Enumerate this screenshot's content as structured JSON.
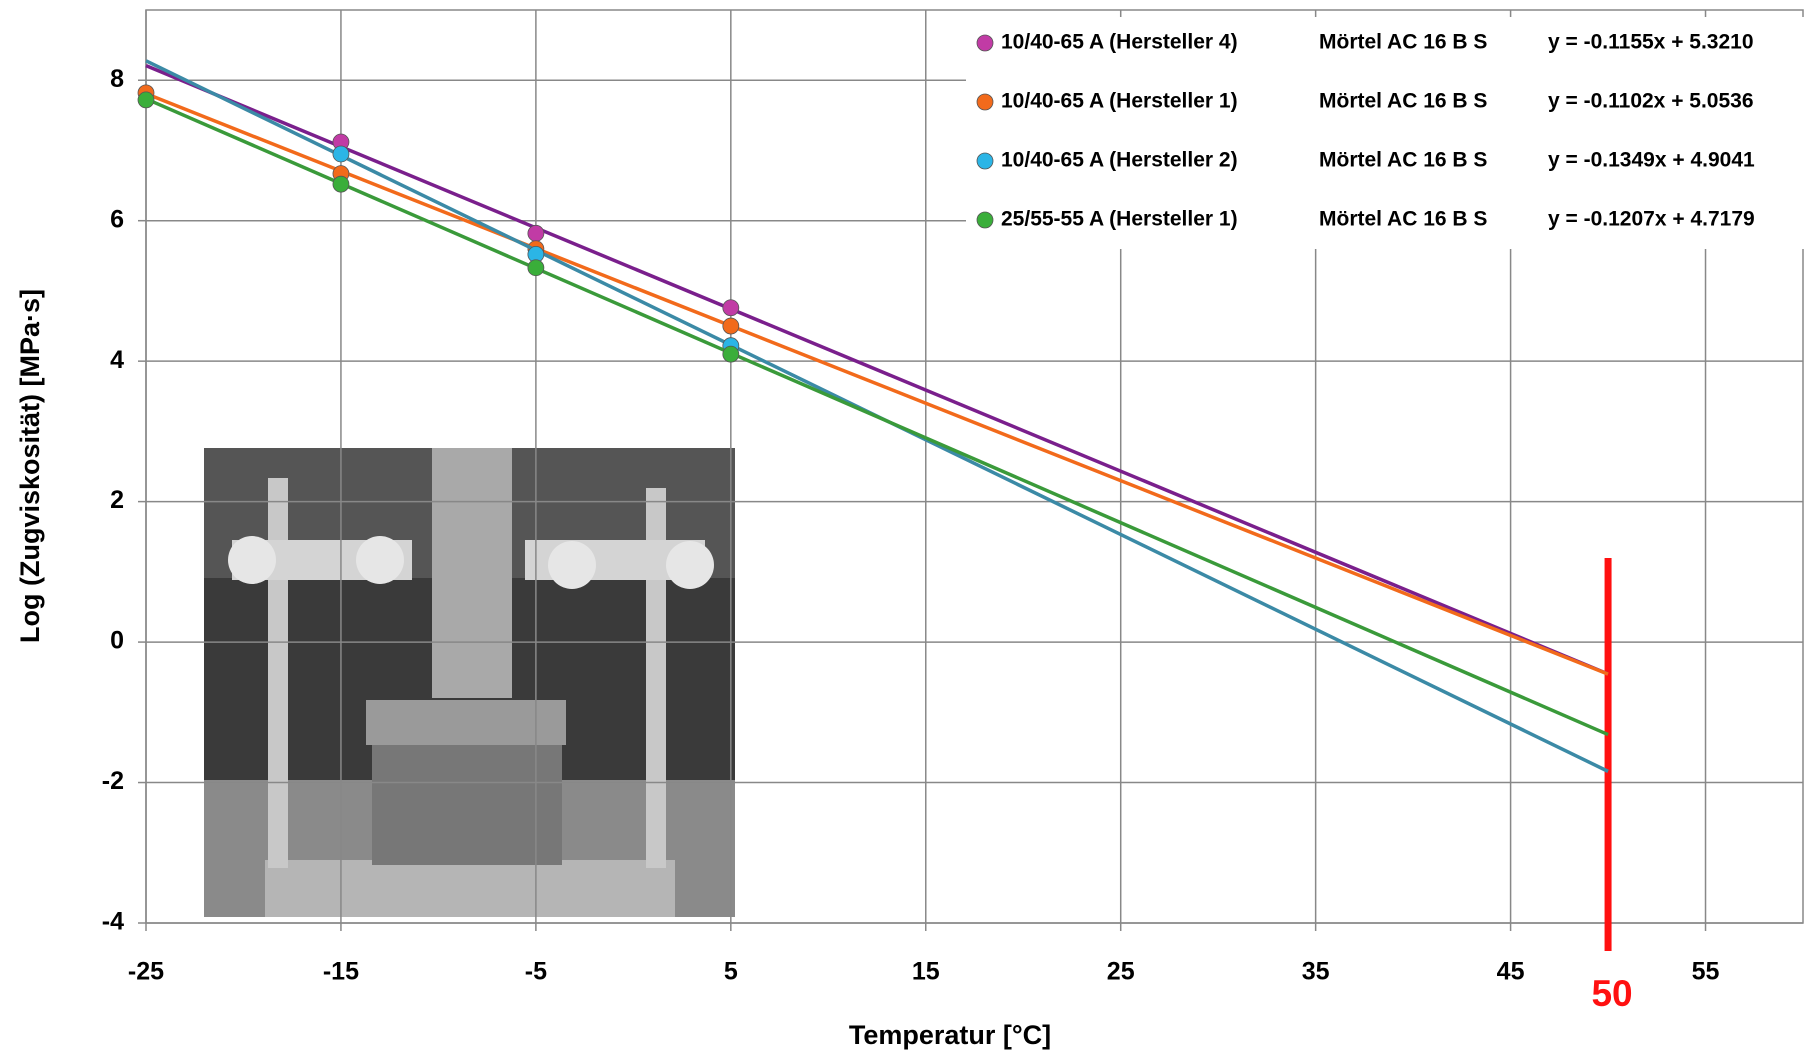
{
  "chart_data": {
    "type": "scatter",
    "x_label": "Temperatur [°C]",
    "y_label": "Log (Zugviskosität) [MPa·s]",
    "x": [
      -25,
      -15,
      -5,
      5
    ],
    "xlim": [
      -25,
      60
    ],
    "xticks": [
      -25,
      -15,
      -5,
      5,
      15,
      25,
      35,
      45,
      55
    ],
    "ylim": [
      -4,
      9
    ],
    "yticks": [
      -4,
      -2,
      0,
      2,
      4,
      6,
      8
    ],
    "grid": true,
    "legend": "top-right",
    "series": [
      {
        "name": "10/40-65 A (Hersteller 4)",
        "material": "Mörtel AC 16 B S",
        "color": "#c13ba5",
        "line_color": "#7a1f8c",
        "values": [
          null,
          7.12,
          5.82,
          4.76
        ],
        "trend": {
          "slope": -0.1155,
          "intercept": 5.321,
          "label": "y = -0.1155x + 5.3210"
        }
      },
      {
        "name": "10/40-65 A (Hersteller 1)",
        "material": "Mörtel AC 16 B S",
        "color": "#f26a1b",
        "line_color": "#f26a1b",
        "values": [
          7.82,
          6.67,
          5.6,
          4.5
        ],
        "trend": {
          "slope": -0.1102,
          "intercept": 5.0536,
          "label": "y = -0.1102x + 5.0536"
        }
      },
      {
        "name": "10/40-65 A (Hersteller 2)",
        "material": "Mörtel AC 16 B S",
        "color": "#2bb5e6",
        "line_color": "#3b8aa6",
        "values": [
          null,
          6.95,
          5.52,
          4.22
        ],
        "trend": {
          "slope": -0.1349,
          "intercept": 4.9041,
          "label": "y = -0.1349x + 4.9041"
        }
      },
      {
        "name": "25/55-55 A (Hersteller 1)",
        "material": "Mörtel AC 16 B S",
        "color": "#3aae3a",
        "line_color": "#3a9a3a",
        "values": [
          7.72,
          6.52,
          5.33,
          4.1
        ],
        "trend": {
          "slope": -0.1207,
          "intercept": 4.7179,
          "label": "y = -0.1207x + 4.7179"
        }
      }
    ],
    "marker": {
      "value": 50,
      "label": "50",
      "color": "#ff1010"
    }
  }
}
